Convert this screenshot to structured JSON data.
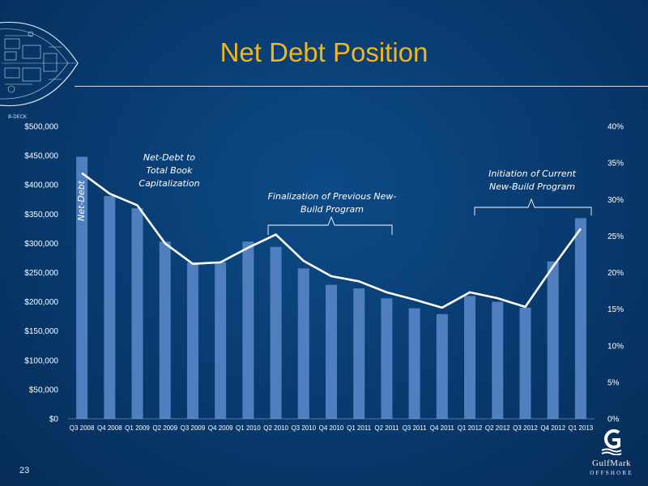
{
  "slide": {
    "title": "Net Debt Position",
    "page_number": "23",
    "blueprint_label": "B-DECK"
  },
  "logo": {
    "name": "GulfMark",
    "sub": "OFFSHORE",
    "color": "#ffffff"
  },
  "colors": {
    "bar": "#4f7fbf",
    "line": "#ffffff",
    "title": "#f2b51a",
    "background": "#083a6e"
  },
  "chart_data": {
    "type": "bar",
    "categories": [
      "Q3 2008",
      "Q4 2008",
      "Q1 2009",
      "Q2 2009",
      "Q3 2009",
      "Q4 2009",
      "Q1 2010",
      "Q2 2010",
      "Q3 2010",
      "Q4 2010",
      "Q1 2011",
      "Q2 2011",
      "Q3 2011",
      "Q4 2011",
      "Q1 2012",
      "Q2 2012",
      "Q3 2012",
      "Q4 2012",
      "Q1 2013"
    ],
    "ylim": [
      0,
      500000
    ],
    "yticks": [
      "$0",
      "$50,000",
      "$100,000",
      "$150,000",
      "$200,000",
      "$250,000",
      "$300,000",
      "$350,000",
      "$400,000",
      "$450,000",
      "$500,000"
    ],
    "y2lim": [
      0,
      40
    ],
    "y2ticks": [
      "0%",
      "5%",
      "10%",
      "15%",
      "20%",
      "25%",
      "30%",
      "35%",
      "40%"
    ],
    "series": [
      {
        "name": "Net-Debt",
        "type": "bar",
        "axis": "left",
        "values": [
          448000,
          381000,
          360000,
          303000,
          267000,
          268000,
          303000,
          294000,
          257000,
          229000,
          223000,
          206000,
          189000,
          179000,
          210000,
          200000,
          190000,
          269000,
          343000
        ]
      },
      {
        "name": "Net-Debt to Total Book Capitalization",
        "type": "line",
        "axis": "right",
        "values": [
          33.6,
          30.8,
          29.2,
          24.0,
          21.2,
          21.4,
          23.4,
          25.2,
          21.6,
          19.5,
          18.8,
          17.3,
          16.3,
          15.2,
          17.3,
          16.5,
          15.3,
          20.8,
          26.0
        ]
      }
    ],
    "annotations": [
      {
        "id": "ratio-label",
        "lines": [
          "Net-Debt to",
          "Total Book",
          "Capitalization"
        ]
      },
      {
        "id": "previous-build",
        "lines": [
          "Finalization of Previous New-",
          "Build Program"
        ],
        "from": "Q2 2010",
        "to": "Q2 2011"
      },
      {
        "id": "current-build",
        "lines": [
          "Initiation of Current",
          "New-Build Program"
        ],
        "from": "Q1 2012",
        "to": "Q1 2013"
      }
    ],
    "grid": false
  }
}
